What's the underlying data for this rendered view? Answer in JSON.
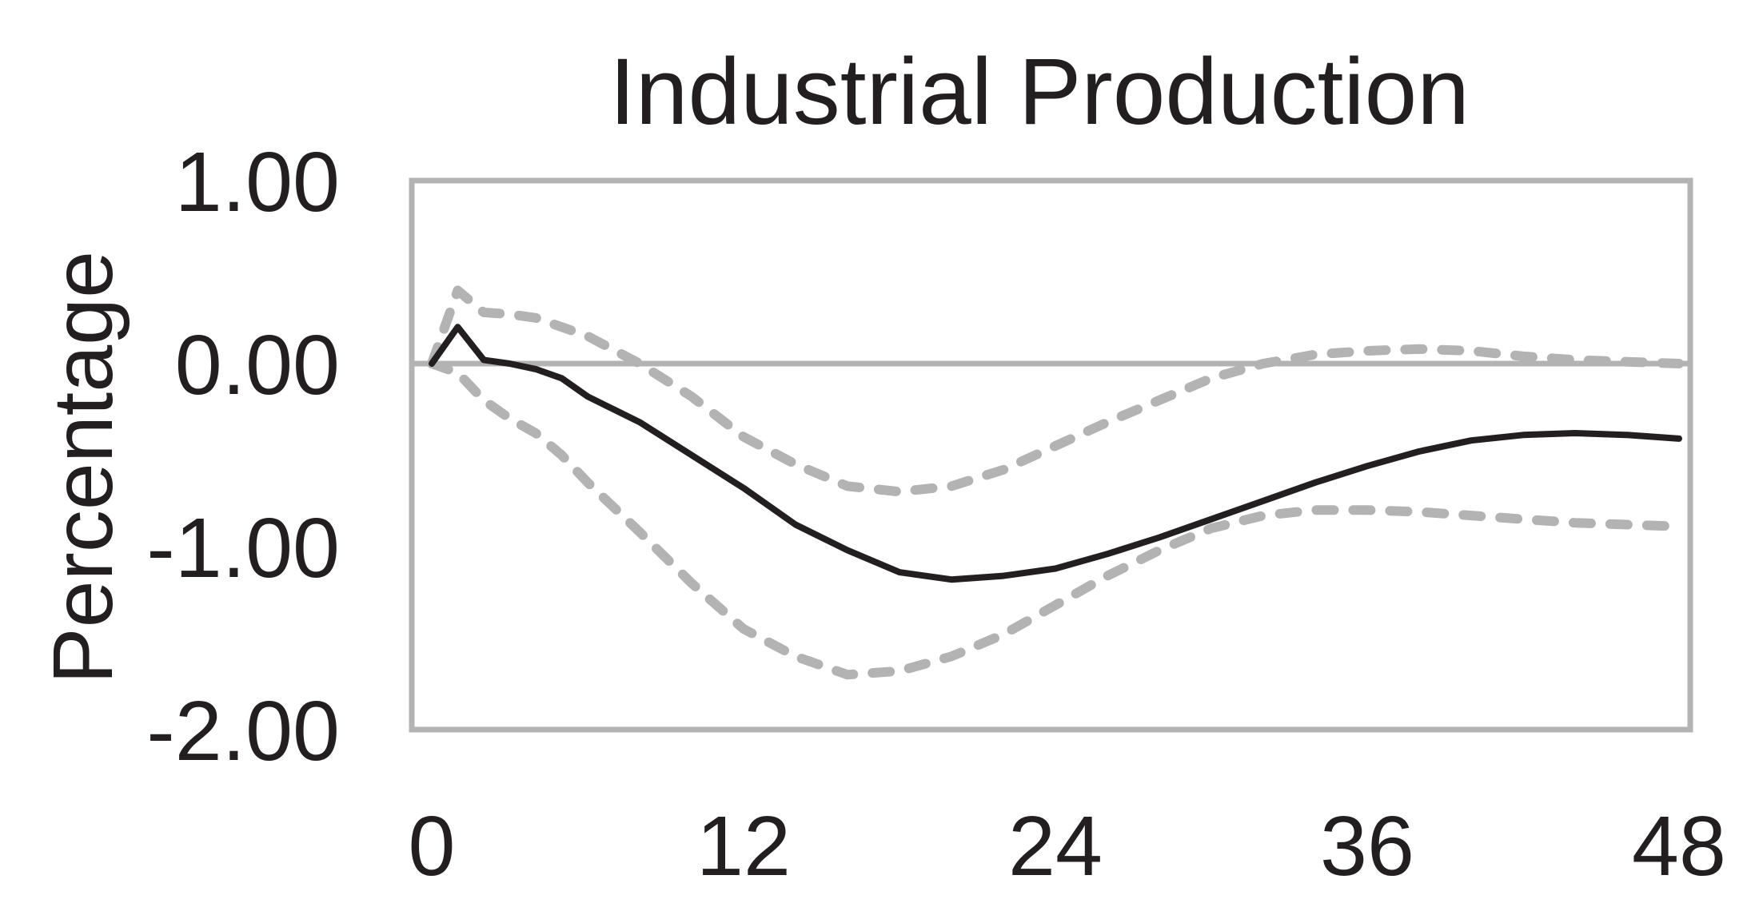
{
  "chart_data": {
    "type": "line",
    "title": "Industrial Production",
    "xlabel": "",
    "ylabel": "Percentage",
    "xlim": [
      0,
      48
    ],
    "ylim": [
      -2.0,
      1.0
    ],
    "x_ticks": [
      "0",
      "12",
      "24",
      "36",
      "48"
    ],
    "y_ticks": [
      "1.00",
      "0.00",
      "-1.00",
      "-2.00"
    ],
    "x_tick_values": [
      0,
      12,
      24,
      36,
      48
    ],
    "y_tick_values": [
      1.0,
      0.0,
      -1.0,
      -2.0
    ],
    "zero_line": true,
    "grid": false,
    "legend": "none",
    "x": [
      0,
      1,
      2,
      3,
      4,
      5,
      6,
      8,
      10,
      12,
      14,
      16,
      18,
      20,
      22,
      24,
      26,
      28,
      30,
      32,
      34,
      36,
      38,
      40,
      42,
      44,
      46,
      48
    ],
    "series": [
      {
        "role": "estimate",
        "color": "#231f20",
        "style": "solid",
        "values": [
          0.0,
          0.2,
          0.02,
          0.0,
          -0.03,
          -0.08,
          -0.18,
          -0.32,
          -0.5,
          -0.68,
          -0.88,
          -1.02,
          -1.14,
          -1.18,
          -1.16,
          -1.12,
          -1.04,
          -0.95,
          -0.85,
          -0.75,
          -0.65,
          -0.56,
          -0.48,
          -0.42,
          -0.39,
          -0.38,
          -0.39,
          -0.41
        ]
      },
      {
        "role": "upper band",
        "color": "#b3b3b3",
        "style": "dashed",
        "values": [
          0.0,
          0.4,
          0.28,
          0.27,
          0.25,
          0.2,
          0.15,
          0.0,
          -0.18,
          -0.4,
          -0.55,
          -0.67,
          -0.7,
          -0.67,
          -0.58,
          -0.45,
          -0.32,
          -0.2,
          -0.08,
          0.0,
          0.05,
          0.07,
          0.08,
          0.07,
          0.04,
          0.02,
          0.01,
          0.0
        ]
      },
      {
        "role": "lower band",
        "color": "#b3b3b3",
        "style": "dashed",
        "values": [
          0.0,
          -0.05,
          -0.2,
          -0.3,
          -0.38,
          -0.5,
          -0.65,
          -0.92,
          -1.2,
          -1.45,
          -1.6,
          -1.7,
          -1.68,
          -1.6,
          -1.48,
          -1.32,
          -1.16,
          -1.02,
          -0.9,
          -0.83,
          -0.8,
          -0.8,
          -0.81,
          -0.83,
          -0.85,
          -0.87,
          -0.88,
          -0.89
        ]
      }
    ]
  }
}
